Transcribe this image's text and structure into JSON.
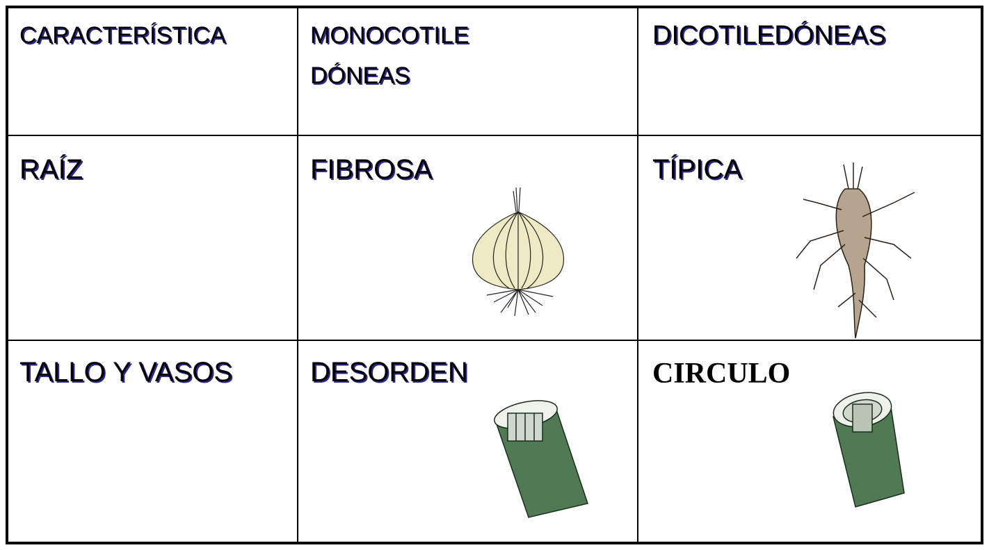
{
  "table": {
    "rows": [
      [
        "CARACTERÍSTICA",
        [
          "MONOCOTILE",
          "DÓNEAS"
        ],
        "DICOTILEDÓNEAS"
      ],
      [
        "RAÍZ",
        "FIBROSA",
        "TÍPICA"
      ],
      [
        "TALLO Y VASOS",
        "DESORDEN",
        "CIRCULO"
      ]
    ]
  }
}
